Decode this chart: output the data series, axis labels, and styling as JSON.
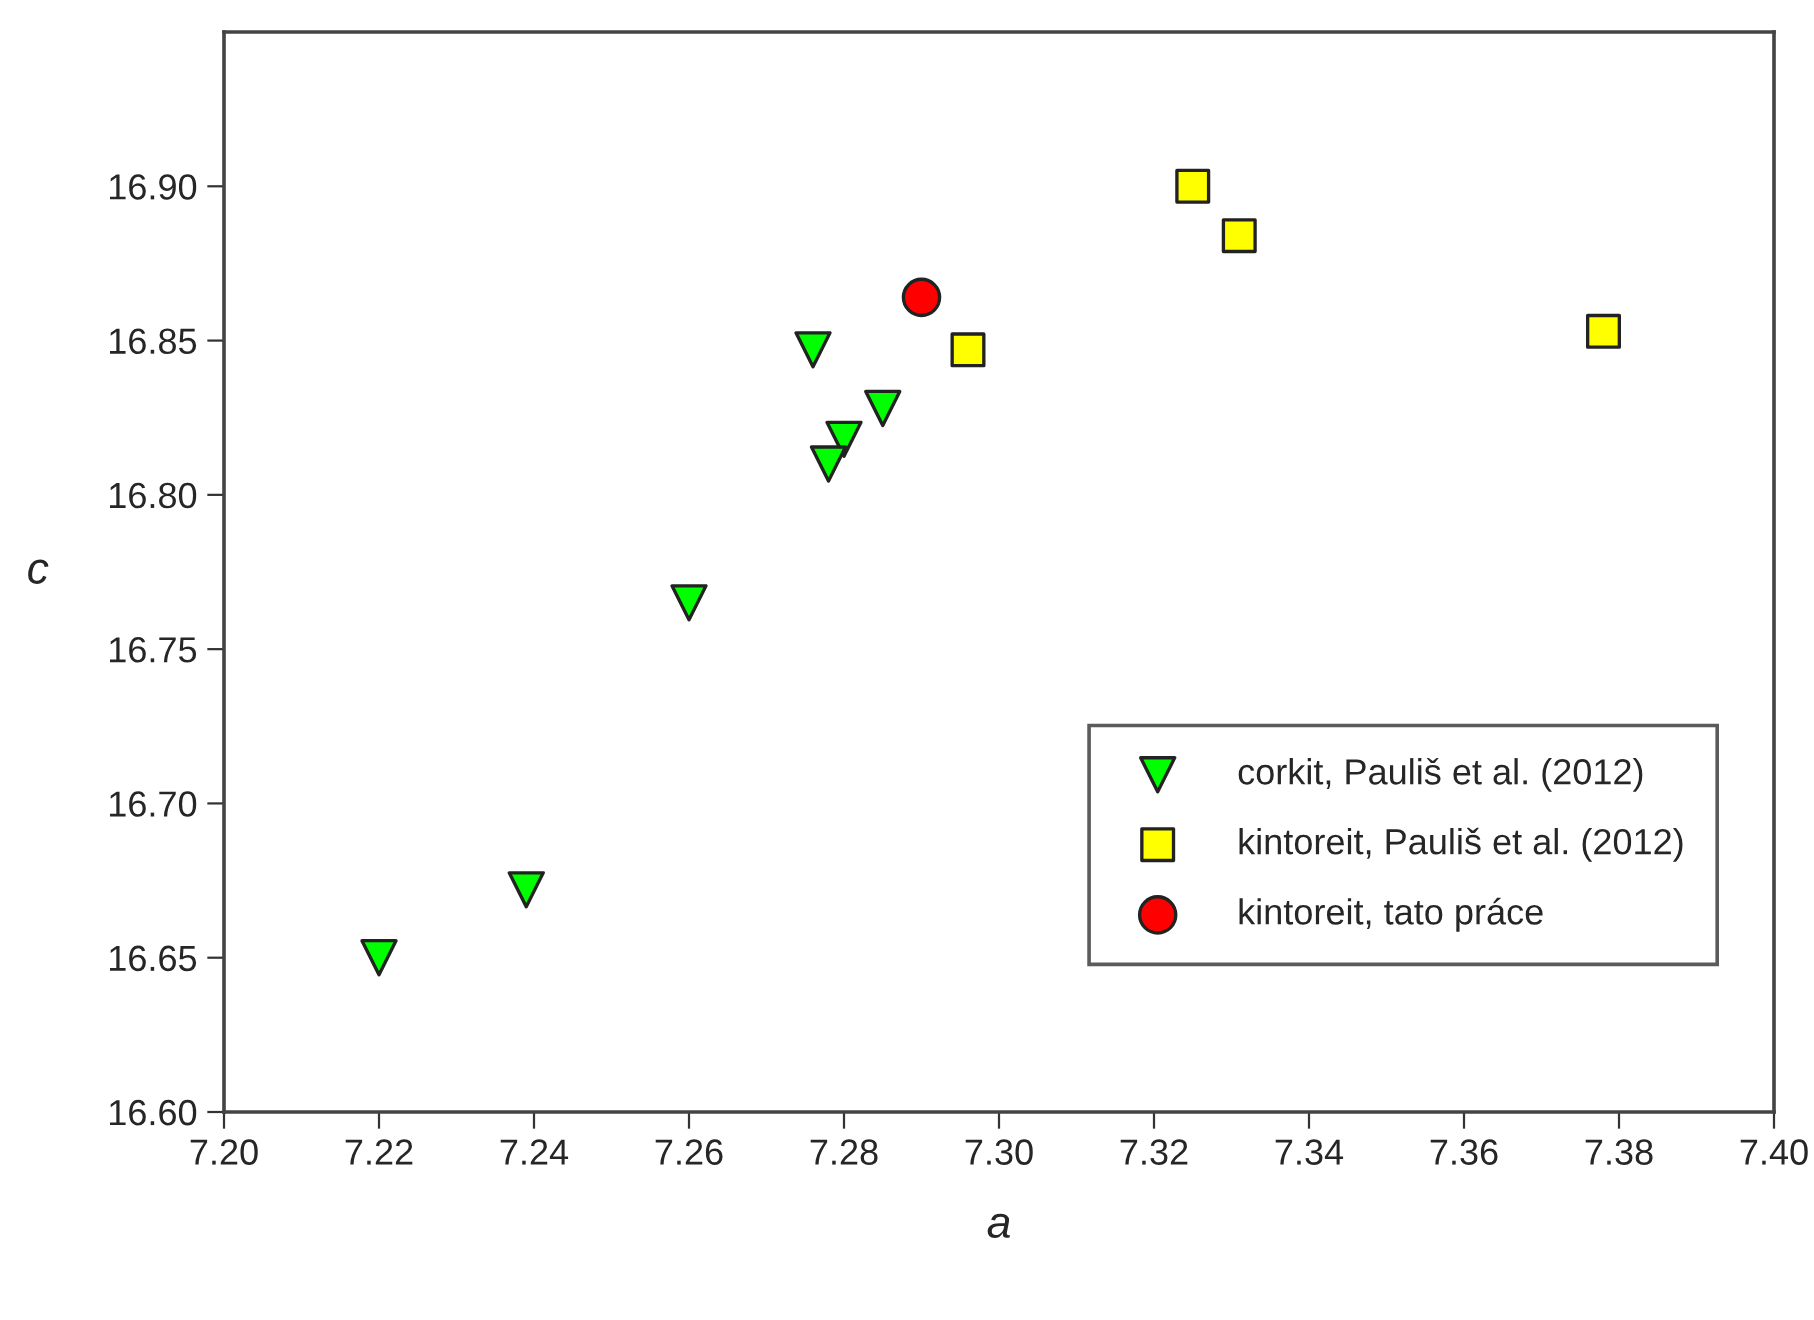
{
  "chart_data": {
    "type": "scatter",
    "xlabel": "a",
    "ylabel": "c",
    "xlim": [
      7.2,
      7.4
    ],
    "xticks": [
      {
        "value": 7.2,
        "label": "7.20"
      },
      {
        "value": 7.22,
        "label": "7.22"
      },
      {
        "value": 7.24,
        "label": "7.24"
      },
      {
        "value": 7.26,
        "label": "7.26"
      },
      {
        "value": 7.28,
        "label": "7.28"
      },
      {
        "value": 7.3,
        "label": "7.30"
      },
      {
        "value": 7.32,
        "label": "7.32"
      },
      {
        "value": 7.34,
        "label": "7.34"
      },
      {
        "value": 7.36,
        "label": "7.36"
      },
      {
        "value": 7.38,
        "label": "7.38"
      },
      {
        "value": 7.4,
        "label": "7.40"
      }
    ],
    "ylim": [
      16.6,
      16.95
    ],
    "yticks": [
      {
        "value": 16.6,
        "label": "16.60"
      },
      {
        "value": 16.65,
        "label": "16.65"
      },
      {
        "value": 16.7,
        "label": "16.70"
      },
      {
        "value": 16.75,
        "label": "16.75"
      },
      {
        "value": 16.8,
        "label": "16.80"
      },
      {
        "value": 16.85,
        "label": "16.85"
      },
      {
        "value": 16.9,
        "label": "16.90"
      }
    ],
    "grid": false,
    "legend": "bottom right",
    "series": [
      {
        "name": "corkit, Pauliš et al. (2012)",
        "color": "#00ff00",
        "marker": "triangle_down",
        "x": [
          7.22,
          7.239,
          7.26,
          7.276,
          7.285,
          7.28,
          7.278
        ],
        "values": [
          16.65,
          16.672,
          16.765,
          16.847,
          16.828,
          16.818,
          16.81
        ]
      },
      {
        "name": "kintoreit, Pauliš et al. (2012)",
        "color": "#ffff00",
        "marker": "square",
        "x": [
          7.296,
          7.325,
          7.331,
          7.378
        ],
        "values": [
          16.847,
          16.9,
          16.884,
          16.853
        ]
      },
      {
        "name": "kintoreit, tato práce",
        "color": "#ff0000",
        "marker": "circle",
        "x": [
          7.29
        ],
        "values": [
          16.864
        ]
      }
    ]
  }
}
